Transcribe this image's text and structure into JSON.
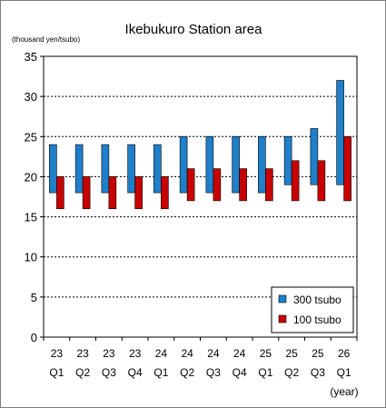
{
  "chart_data": {
    "type": "bar",
    "title": "Ikebukuro Station area",
    "ylabel": "(thousand yen/tsubo)",
    "xlabel": "(year)",
    "ylim": [
      0,
      35
    ],
    "yticks": [
      0,
      5,
      10,
      15,
      20,
      25,
      30,
      35
    ],
    "grid": true,
    "legend_position": "bottom-right",
    "categories": [
      {
        "year": "23",
        "quarter": "Q1"
      },
      {
        "year": "23",
        "quarter": "Q2"
      },
      {
        "year": "23",
        "quarter": "Q3"
      },
      {
        "year": "23",
        "quarter": "Q4"
      },
      {
        "year": "24",
        "quarter": "Q1"
      },
      {
        "year": "24",
        "quarter": "Q2"
      },
      {
        "year": "24",
        "quarter": "Q3"
      },
      {
        "year": "24",
        "quarter": "Q4"
      },
      {
        "year": "25",
        "quarter": "Q1"
      },
      {
        "year": "25",
        "quarter": "Q2"
      },
      {
        "year": "25",
        "quarter": "Q3"
      },
      {
        "year": "26",
        "quarter": "Q1"
      }
    ],
    "series": [
      {
        "name": "300 tsubo",
        "color": "#1f7fc9",
        "low": [
          18,
          18,
          18,
          18,
          18,
          18,
          18,
          18,
          18,
          19,
          19,
          19
        ],
        "high": [
          24,
          24,
          24,
          24,
          24,
          25,
          25,
          25,
          25,
          25,
          26,
          32
        ]
      },
      {
        "name": "100 tsubo",
        "color": "#c80000",
        "low": [
          16,
          16,
          16,
          16,
          16,
          17,
          17,
          17,
          17,
          17,
          17,
          17
        ],
        "high": [
          20,
          20,
          20,
          20,
          20,
          21,
          21,
          21,
          21,
          22,
          22,
          25
        ]
      }
    ]
  }
}
